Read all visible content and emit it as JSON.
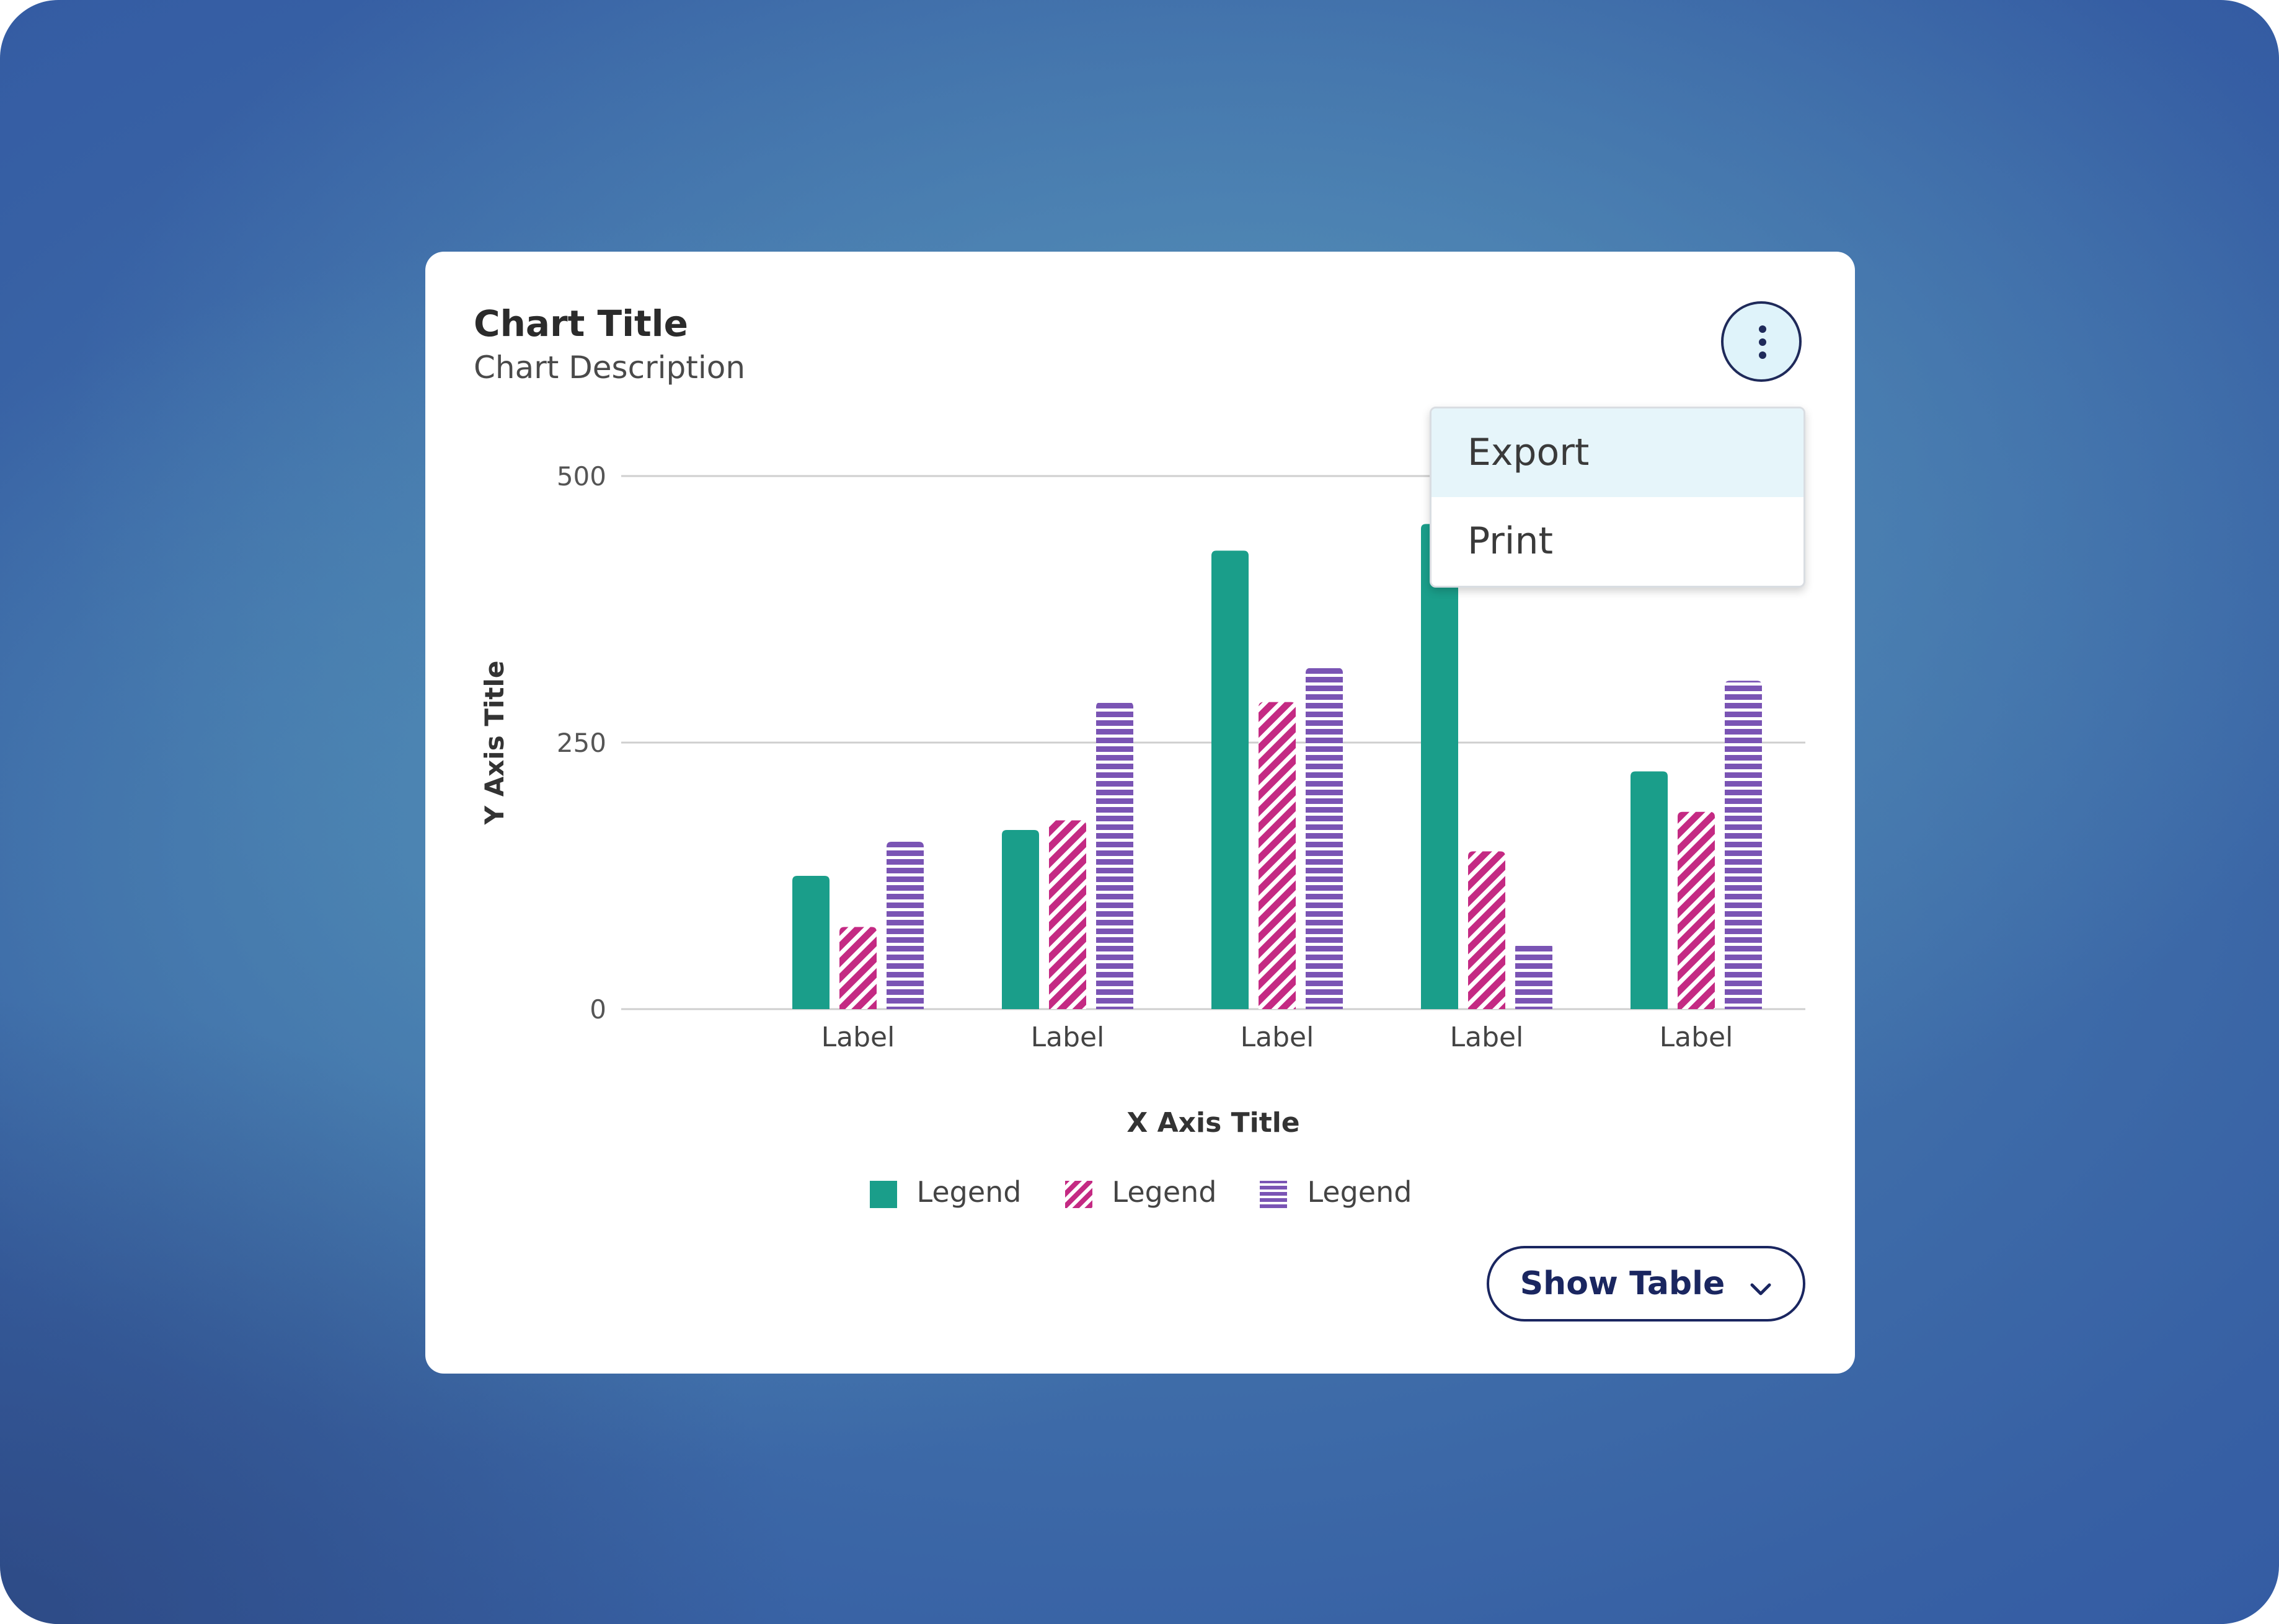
{
  "card": {
    "title": "Chart Title",
    "description": "Chart Description"
  },
  "menu": {
    "items": [
      "Export",
      "Print"
    ],
    "active_index": 0
  },
  "show_table_label": "Show Table",
  "colors": {
    "series1": "#1a9e8a",
    "series2": "#c42a83",
    "series3": "#7a54b4",
    "accent": "#1a2660",
    "menu_highlight": "#e6f5fa"
  },
  "chart_data": {
    "type": "bar",
    "xlabel": "X Axis Title",
    "ylabel": "Y Axis Title",
    "categories": [
      "Label",
      "Label",
      "Label",
      "Label",
      "Label"
    ],
    "ylim": [
      0,
      500
    ],
    "yticks": [
      "0",
      "250",
      "500"
    ],
    "grid": true,
    "legend_position": "bottom",
    "series": [
      {
        "name": "Legend",
        "pattern": "solid",
        "values": [
          125,
          168,
          430,
          455,
          223
        ]
      },
      {
        "name": "Legend",
        "pattern": "diagonal-stripes",
        "values": [
          77,
          177,
          288,
          148,
          185
        ]
      },
      {
        "name": "Legend",
        "pattern": "horizontal-stripes",
        "values": [
          157,
          288,
          320,
          62,
          308
        ]
      }
    ]
  }
}
